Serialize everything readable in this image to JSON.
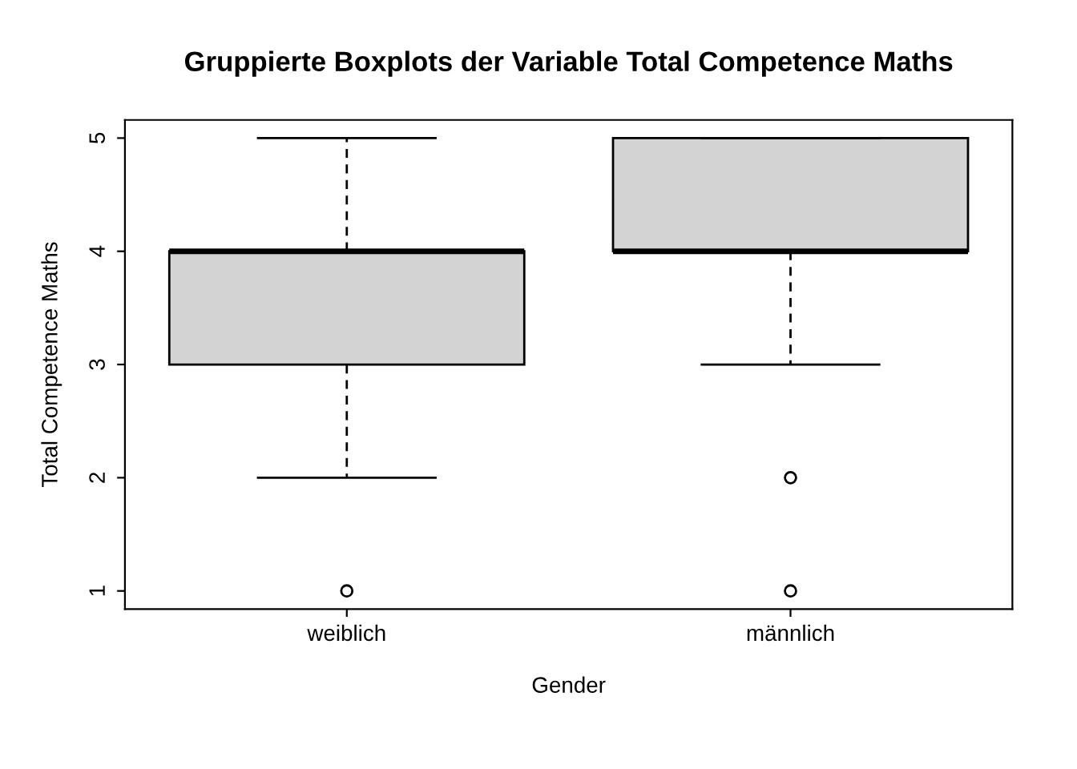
{
  "chart_data": {
    "type": "box",
    "title": "Gruppierte Boxplots der Variable Total Competence Maths",
    "xlabel": "Gender",
    "ylabel": "Total Competence Maths",
    "categories": [
      "weiblich",
      "männlich"
    ],
    "boxes": [
      {
        "low": 2,
        "q1": 3,
        "median": 4,
        "q3": 4,
        "high": 5,
        "outliers": [
          1
        ]
      },
      {
        "low": 3,
        "q1": 4,
        "median": 4,
        "q3": 5,
        "high": 5,
        "outliers": [
          2,
          1
        ]
      }
    ],
    "ylim": [
      0.84,
      5.16
    ],
    "yticks": [
      1,
      2,
      3,
      4,
      5
    ]
  }
}
